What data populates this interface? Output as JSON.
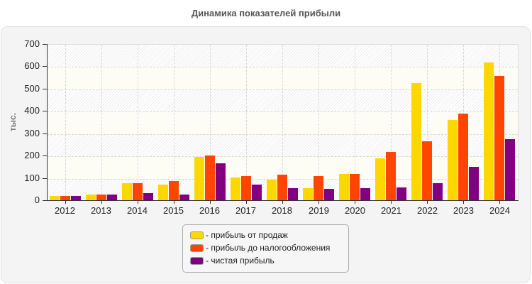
{
  "chart_data": {
    "type": "bar",
    "title": "Динамика показателей прибыли",
    "xlabel": "",
    "ylabel": "тыс.",
    "ylim": [
      0,
      700
    ],
    "yticks": [
      0,
      100,
      200,
      300,
      400,
      500,
      600,
      700
    ],
    "grid": true,
    "legend_position": "bottom",
    "categories": [
      "2012",
      "2013",
      "2014",
      "2015",
      "2016",
      "2017",
      "2018",
      "2019",
      "2020",
      "2021",
      "2022",
      "2023",
      "2024"
    ],
    "series": [
      {
        "name": "прибыль от продаж",
        "color": "#FFD700",
        "values": [
          22,
          29,
          80,
          73,
          197,
          105,
          94,
          58,
          121,
          190,
          527,
          364,
          620
        ]
      },
      {
        "name": "прибыль до налогообложения",
        "color": "#FF4500",
        "values": [
          22,
          29,
          80,
          89,
          205,
          112,
          119,
          110,
          121,
          218,
          268,
          390,
          559
        ]
      },
      {
        "name": "чистая прибыль",
        "color": "#800080",
        "values": [
          22,
          29,
          35,
          29,
          169,
          73,
          58,
          55,
          58,
          61,
          80,
          153,
          278
        ]
      }
    ]
  },
  "legend": {
    "items": [
      {
        "label": "- прибыль от продаж",
        "color": "#FFD700"
      },
      {
        "label": "- прибыль до налогообложения",
        "color": "#FF4500"
      },
      {
        "label": "- чистая прибыль",
        "color": "#800080"
      }
    ]
  }
}
